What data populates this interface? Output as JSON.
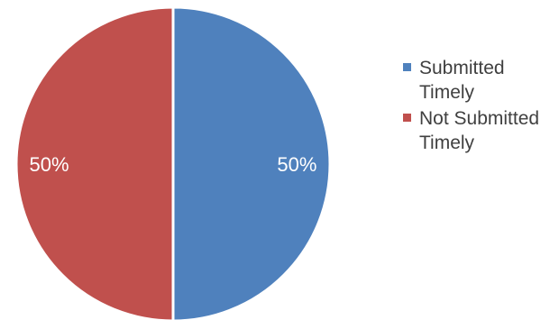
{
  "chart_data": {
    "type": "pie",
    "title": "",
    "categories": [
      "Submitted Timely",
      "Not Submitted Timely"
    ],
    "values": [
      50,
      50
    ],
    "data_labels": [
      "50%",
      "50%"
    ],
    "colors": [
      "#4F81BD",
      "#C0504D"
    ],
    "start_angle": "12 o'clock",
    "direction": "clockwise",
    "legend_position": "right"
  },
  "legend": {
    "items": [
      {
        "label": "Submitted Timely",
        "color": "#4F81BD"
      },
      {
        "label": "Not Submitted Timely",
        "color": "#C0504D"
      }
    ]
  }
}
